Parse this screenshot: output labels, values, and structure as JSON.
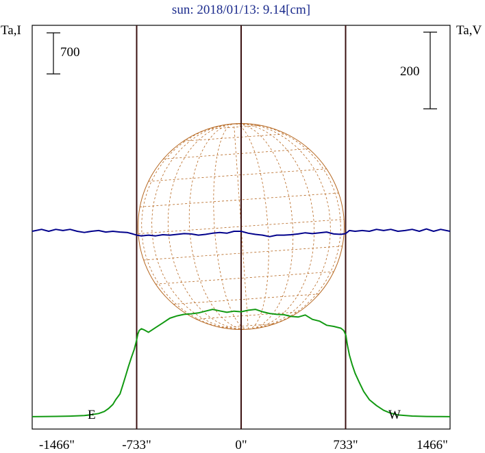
{
  "chart_data": {
    "type": "line",
    "title": "sun: 2018/01/13: 9.14[cm]",
    "ylabel_left": "Ta,I",
    "ylabel_right": "Ta,V",
    "scale_bar_left": "700",
    "scale_bar_right": "200",
    "xlim": [
      -1466,
      1466
    ],
    "x_tick_values": [
      -1466,
      -733,
      0,
      733,
      1466
    ],
    "x_tick_labels": [
      "-1466\"",
      "-733\"",
      "0\"",
      "733\"",
      "1466\""
    ],
    "limb_positions": [
      -733,
      0,
      733
    ],
    "limb_labels": {
      "east": "E",
      "west": "W"
    },
    "grid": false,
    "legend": "none",
    "colors": {
      "stokes_i": "#119911",
      "stokes_v": "#00008b",
      "frame": "#000000",
      "limb_lines": "#3a1010",
      "sun_disk": "#b5651d",
      "title": "#1a2a8c"
    },
    "series": [
      {
        "key": "stokes_i",
        "x": [
          -1466,
          -1400,
          -1300,
          -1200,
          -1100,
          -1050,
          -1000,
          -960,
          -930,
          -900,
          -880,
          -850,
          -830,
          -810,
          -790,
          -770,
          -750,
          -735,
          -725,
          -715,
          -700,
          -680,
          -650,
          -600,
          -550,
          -500,
          -450,
          -400,
          -350,
          -300,
          -250,
          -200,
          -150,
          -100,
          -50,
          0,
          50,
          100,
          150,
          200,
          250,
          300,
          350,
          400,
          450,
          500,
          550,
          600,
          650,
          700,
          720,
          735,
          745,
          760,
          780,
          800,
          830,
          860,
          900,
          950,
          1000,
          1050,
          1100,
          1200,
          1300,
          1400,
          1466
        ],
        "y": [
          1.5,
          2,
          6,
          10,
          20,
          35,
          55,
          90,
          140,
          210,
          290,
          390,
          540,
          700,
          860,
          1010,
          1150,
          1290,
          1410,
          1470,
          1500,
          1480,
          1440,
          1520,
          1600,
          1680,
          1720,
          1745,
          1755,
          1770,
          1800,
          1830,
          1805,
          1780,
          1800,
          1790,
          1815,
          1830,
          1790,
          1760,
          1745,
          1740,
          1710,
          1700,
          1735,
          1660,
          1630,
          1560,
          1540,
          1510,
          1470,
          1390,
          1230,
          1050,
          880,
          740,
          580,
          430,
          290,
          190,
          110,
          60,
          30,
          12,
          5,
          2,
          1.5
        ]
      },
      {
        "key": "stokes_v",
        "x": [
          -1466,
          -1400,
          -1350,
          -1300,
          -1250,
          -1200,
          -1150,
          -1100,
          -1050,
          -1000,
          -950,
          -900,
          -850,
          -800,
          -760,
          -733,
          -700,
          -650,
          -600,
          -550,
          -500,
          -450,
          -400,
          -350,
          -300,
          -250,
          -200,
          -150,
          -100,
          -50,
          0,
          50,
          100,
          150,
          200,
          250,
          300,
          350,
          400,
          450,
          500,
          550,
          600,
          650,
          700,
          733,
          760,
          800,
          850,
          900,
          950,
          1000,
          1050,
          1100,
          1150,
          1200,
          1250,
          1300,
          1350,
          1400,
          1466
        ],
        "y": [
          0,
          5,
          0,
          5,
          2,
          5,
          0,
          -3,
          0,
          2,
          -2,
          0,
          -2,
          -3,
          -7,
          -10,
          -12,
          -10,
          -12,
          -9,
          -10,
          -8,
          -6,
          -7,
          -10,
          -8,
          -5,
          -3,
          -5,
          0,
          0,
          -5,
          -8,
          -10,
          -14,
          -10,
          -10,
          -9,
          -7,
          -4,
          -6,
          -4,
          -2,
          -7,
          -8,
          -6,
          2,
          0,
          2,
          0,
          5,
          2,
          5,
          0,
          2,
          5,
          0,
          6,
          0,
          5,
          0
        ]
      }
    ]
  }
}
